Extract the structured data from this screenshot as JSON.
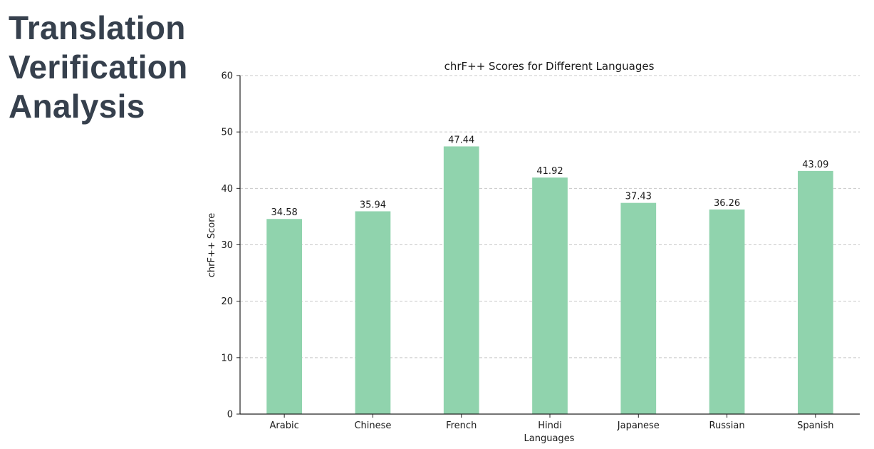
{
  "page": {
    "title_lines": [
      "Translation",
      "Verification",
      "Analysis"
    ]
  },
  "chart_data": {
    "type": "bar",
    "title": "chrF++ Scores for Different Languages",
    "xlabel": "Languages",
    "ylabel": "chrF++ Score",
    "categories": [
      "Arabic",
      "Chinese",
      "French",
      "Hindi",
      "Japanese",
      "Russian",
      "Spanish"
    ],
    "values": [
      34.58,
      35.94,
      47.44,
      41.92,
      37.43,
      36.26,
      43.09
    ],
    "value_labels": [
      "34.58",
      "35.94",
      "47.44",
      "41.92",
      "37.43",
      "36.26",
      "43.09"
    ],
    "ylim": [
      0,
      60
    ],
    "yticks": [
      0,
      10,
      20,
      30,
      40,
      50,
      60
    ],
    "grid": "horizontal dashed",
    "legend": "none",
    "colors": {
      "bar": "#90d3ad",
      "grid": "#c8c8c8",
      "axis": "#222222",
      "title_text": "#36404d"
    }
  }
}
